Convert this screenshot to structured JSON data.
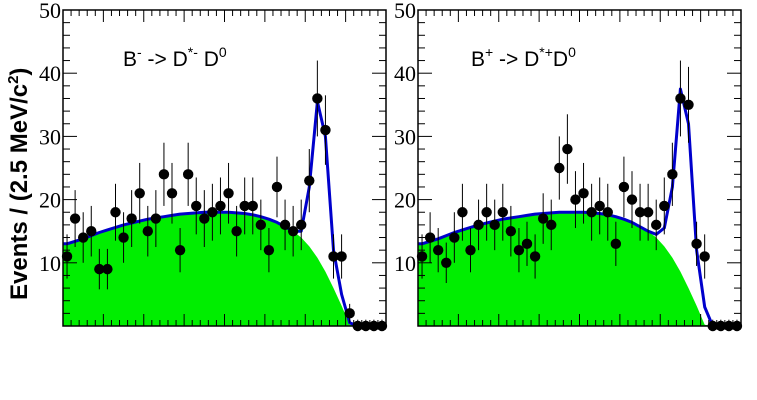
{
  "figure": {
    "ylabel_main": "Events / (2.5 MeV/c",
    "ylabel_sup": "2",
    "ylabel_end": ")"
  },
  "colors": {
    "background_fill": "#00ee00",
    "total_fit_line": "#0000cc",
    "points": "#000000"
  },
  "chart_data": [
    {
      "type": "scatter",
      "title_parts": [
        "B",
        "-",
        " -> D",
        "*-",
        " D",
        "0"
      ],
      "ylabel": "Events / (2.5 MeV/c2)",
      "ylim": [
        0,
        50
      ],
      "yticks": [
        "10",
        "20",
        "30",
        "40",
        "50"
      ],
      "xbins": 36,
      "grid": false,
      "series": [
        {
          "values": [
            11,
            17,
            14,
            15,
            9,
            9,
            18,
            14,
            17,
            21,
            15,
            17,
            24,
            21,
            12,
            24,
            19,
            17,
            18,
            19,
            21,
            15,
            19,
            19,
            16,
            12,
            22,
            16,
            15,
            16,
            23,
            36,
            31,
            11,
            11,
            2,
            0,
            0,
            0,
            0
          ],
          "errors": [
            3.5,
            4.5,
            4.0,
            4.0,
            3.2,
            3.2,
            4.5,
            4.0,
            4.5,
            4.8,
            4.0,
            4.5,
            5.0,
            4.8,
            3.5,
            5.0,
            4.5,
            4.5,
            4.5,
            4.5,
            4.8,
            4.0,
            4.5,
            4.5,
            4.0,
            3.5,
            4.8,
            4.0,
            4.0,
            4.0,
            5.0,
            6.0,
            5.5,
            3.5,
            3.5,
            1.5,
            1,
            1,
            1,
            1
          ]
        }
      ],
      "background_curve": [
        13.0,
        13.4,
        13.8,
        14.3,
        14.8,
        15.2,
        15.6,
        16.0,
        16.3,
        16.6,
        16.9,
        17.1,
        17.3,
        17.5,
        17.7,
        17.8,
        17.9,
        18.0,
        18.0,
        18.0,
        18.0,
        17.9,
        17.8,
        17.6,
        17.3,
        16.9,
        16.4,
        15.7,
        15.0,
        14.0,
        12.6,
        10.8,
        8.6,
        6.0,
        3.2,
        0.2,
        0,
        0,
        0,
        0
      ],
      "total_fit_curve": [
        13.0,
        13.4,
        13.8,
        14.3,
        14.8,
        15.2,
        15.6,
        16.0,
        16.3,
        16.6,
        16.9,
        17.1,
        17.3,
        17.5,
        17.7,
        17.8,
        17.9,
        18.0,
        18.0,
        18.0,
        18.0,
        17.9,
        17.8,
        17.6,
        17.3,
        16.9,
        16.4,
        15.7,
        15.0,
        15.0,
        22.0,
        35.5,
        30.0,
        12.0,
        5.0,
        0.5,
        0,
        0,
        0,
        0
      ]
    },
    {
      "type": "scatter",
      "title_parts": [
        "B",
        "+",
        " -> D",
        "*+",
        "D",
        "0"
      ],
      "ylabel": "Events / (2.5 MeV/c2)",
      "ylim": [
        0,
        50
      ],
      "yticks": [
        "10",
        "20",
        "30",
        "40",
        "50"
      ],
      "xbins": 36,
      "grid": false,
      "series": [
        {
          "values": [
            11,
            14,
            12,
            10,
            14,
            18,
            12,
            16,
            18,
            16,
            18,
            15,
            12,
            13,
            11,
            17,
            16,
            25,
            28,
            20,
            21,
            18,
            19,
            18,
            13,
            22,
            20,
            18,
            18,
            16,
            19,
            24,
            36,
            35,
            13,
            11,
            0,
            0,
            0,
            0
          ],
          "errors": [
            3.5,
            4.0,
            3.5,
            3.2,
            4.0,
            4.5,
            3.5,
            4.0,
            4.5,
            4.0,
            4.5,
            4.0,
            3.5,
            3.5,
            3.5,
            4.0,
            4.0,
            5.0,
            5.5,
            4.5,
            4.8,
            4.5,
            4.5,
            4.5,
            3.5,
            4.8,
            4.5,
            4.5,
            4.5,
            4.0,
            4.5,
            5.0,
            6.0,
            6.0,
            3.5,
            3.5,
            1,
            1,
            1,
            1
          ]
        }
      ],
      "background_curve": [
        13.0,
        13.4,
        13.8,
        14.3,
        14.8,
        15.2,
        15.6,
        16.0,
        16.3,
        16.6,
        16.9,
        17.1,
        17.3,
        17.5,
        17.7,
        17.8,
        17.9,
        18.0,
        18.0,
        18.0,
        18.0,
        17.9,
        17.8,
        17.6,
        17.3,
        16.9,
        16.4,
        15.7,
        15.0,
        14.0,
        12.6,
        10.8,
        8.6,
        6.0,
        3.2,
        0.2,
        0,
        0,
        0,
        0
      ],
      "total_fit_curve": [
        13.0,
        13.4,
        13.8,
        14.3,
        14.8,
        15.2,
        15.6,
        16.0,
        16.3,
        16.6,
        16.9,
        17.1,
        17.3,
        17.5,
        17.7,
        17.8,
        17.9,
        18.0,
        18.0,
        18.0,
        18.0,
        17.9,
        17.8,
        17.6,
        17.3,
        16.9,
        16.4,
        15.7,
        15.0,
        14.5,
        15.5,
        22.0,
        37.5,
        32.0,
        12.0,
        3.0,
        0,
        0,
        0,
        0
      ]
    }
  ]
}
